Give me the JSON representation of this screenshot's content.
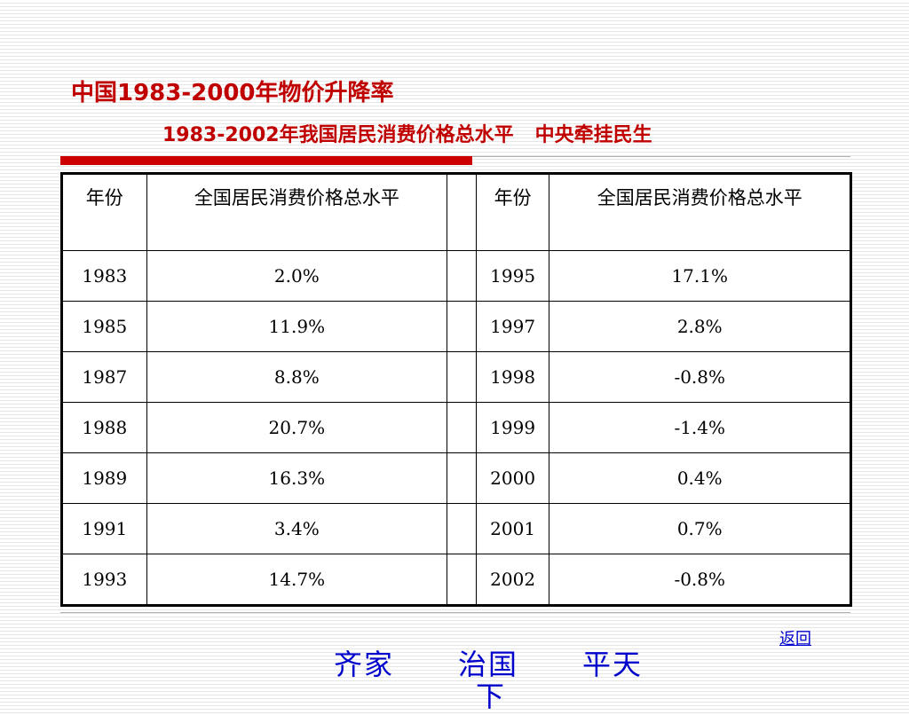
{
  "title": "中国1983-2000年物价升降率",
  "subtitle_left": "1983-2002年我国居民消费价格总水平",
  "subtitle_right": "中央牵挂民生",
  "table": {
    "headers": [
      "年份",
      "全国居民消费价格总水平",
      "",
      "年份",
      "全国居民消费价格总水平"
    ],
    "rows": [
      {
        "year_a": "1983",
        "value_a": "2.0%",
        "year_b": "1995",
        "value_b": "17.1%"
      },
      {
        "year_a": "1985",
        "value_a": "11.9%",
        "year_b": "1997",
        "value_b": "2.8%"
      },
      {
        "year_a": "1987",
        "value_a": "8.8%",
        "year_b": "1998",
        "value_b": "-0.8%"
      },
      {
        "year_a": "1988",
        "value_a": "20.7%",
        "year_b": "1999",
        "value_b": "-1.4%"
      },
      {
        "year_a": "1989",
        "value_a": "16.3%",
        "year_b": "2000",
        "value_b": "0.4%"
      },
      {
        "year_a": "1991",
        "value_a": "3.4%",
        "year_b": "2001",
        "value_b": "0.7%"
      },
      {
        "year_a": "1993",
        "value_a": "14.7%",
        "year_b": "2002",
        "value_b": "-0.8%"
      }
    ]
  },
  "footer": {
    "link1": "齐家",
    "link2": "治国",
    "link3": "平天",
    "link2_overflow": "下",
    "back": "返回"
  },
  "colors": {
    "title": "#c00000",
    "accent_bar": "#cc0000",
    "link": "#0000cc"
  }
}
